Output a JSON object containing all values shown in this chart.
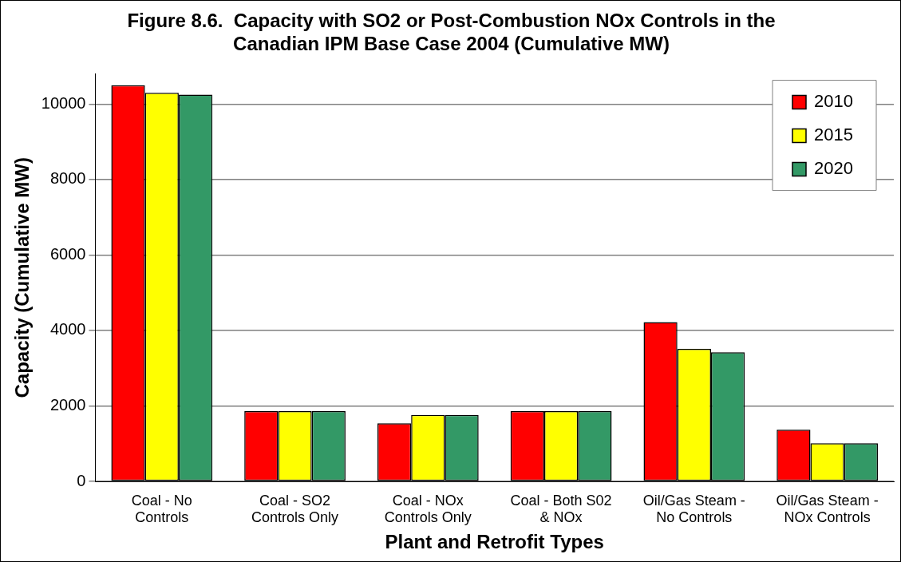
{
  "chart_data": {
    "type": "bar",
    "title": "Figure 8.6.  Capacity with SO2 or Post-Combustion NOx Controls in the Canadian IPM Base Case 2004 (Cumulative MW)",
    "xlabel": "Plant and Retrofit Types",
    "ylabel": "Capacity (Cumulative MW)",
    "categories": [
      "Coal - No Controls",
      "Coal - SO2 Controls Only",
      "Coal - NOx Controls Only",
      "Coal - Both S02 & NOx",
      "Oil/Gas Steam - No Controls",
      "Oil/Gas Steam - NOx Controls"
    ],
    "series": [
      {
        "name": "2010",
        "color": "#ff0000",
        "values": [
          10500,
          1860,
          1540,
          1860,
          4220,
          1370
        ]
      },
      {
        "name": "2015",
        "color": "#ffff00",
        "values": [
          10300,
          1860,
          1760,
          1860,
          3510,
          1010
        ]
      },
      {
        "name": "2020",
        "color": "#339966",
        "values": [
          10250,
          1860,
          1760,
          1860,
          3420,
          1010
        ]
      }
    ],
    "ylim": [
      0,
      10800
    ],
    "yticks": [
      0,
      2000,
      4000,
      6000,
      8000,
      10000
    ],
    "grid": "y",
    "legend": "top right"
  }
}
